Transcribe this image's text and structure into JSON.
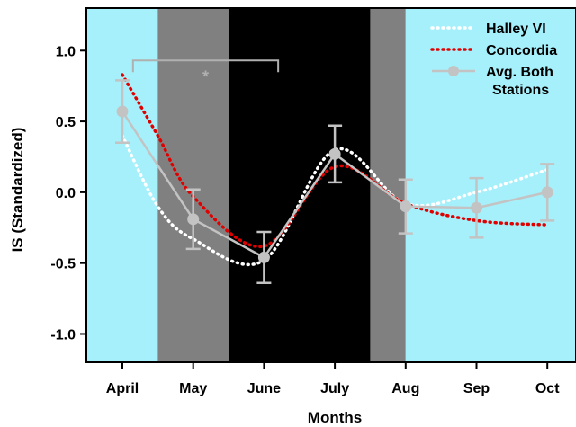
{
  "chart_data": {
    "type": "line",
    "xlabel": "Months",
    "ylabel": "IS (Standardized)",
    "categories": [
      "April",
      "May",
      "June",
      "July",
      "Aug",
      "Sep",
      "Oct"
    ],
    "ylim": [
      -1.2,
      1.3
    ],
    "yticks": [
      "1.0",
      "0.5",
      "0.0",
      "-0.5",
      "-1.0"
    ],
    "ytick_values": [
      1.0,
      0.5,
      0.0,
      -0.5,
      -1.0
    ],
    "background_bands": [
      {
        "from": 0,
        "to": 0.5,
        "color": "#a6f0fb"
      },
      {
        "from": 0.5,
        "to": 1.5,
        "color": "#808080"
      },
      {
        "from": 1.5,
        "to": 3.5,
        "color": "#000000"
      },
      {
        "from": 3.5,
        "to": 4.0,
        "color": "#808080"
      },
      {
        "from": 4.0,
        "to": 6.5,
        "color": "#a6f0fb"
      }
    ],
    "series": [
      {
        "name": "Halley VI",
        "color": "#ffffff",
        "style": "dotted-curve",
        "x": [
          0,
          0.5,
          1,
          2,
          3,
          4,
          5,
          6
        ],
        "values": [
          0.4,
          -0.1,
          -0.33,
          -0.48,
          0.3,
          -0.08,
          0.0,
          0.16
        ]
      },
      {
        "name": "Concordia",
        "color": "#e00000",
        "style": "dotted-curve",
        "x": [
          0,
          0.5,
          1,
          2,
          3,
          4,
          5,
          6
        ],
        "values": [
          0.83,
          0.4,
          -0.03,
          -0.38,
          0.18,
          -0.08,
          -0.2,
          -0.23
        ]
      },
      {
        "name": "Avg. Both Stations",
        "color": "#c3c3c3",
        "style": "solid-markers",
        "x": [
          0,
          1,
          2,
          3,
          4,
          5,
          6
        ],
        "values": [
          0.57,
          -0.19,
          -0.46,
          0.27,
          -0.1,
          -0.11,
          0.0
        ],
        "error": [
          0.22,
          0.21,
          0.18,
          0.2,
          0.19,
          0.21,
          0.2
        ]
      }
    ],
    "annotations": [
      {
        "text": "*",
        "from_x": 0.15,
        "to_x": 2.2,
        "y": 0.93
      }
    ],
    "legend": {
      "placement": "top-right",
      "entries": [
        "Halley VI",
        "Concordia",
        "Avg. Both",
        "Stations"
      ]
    }
  }
}
